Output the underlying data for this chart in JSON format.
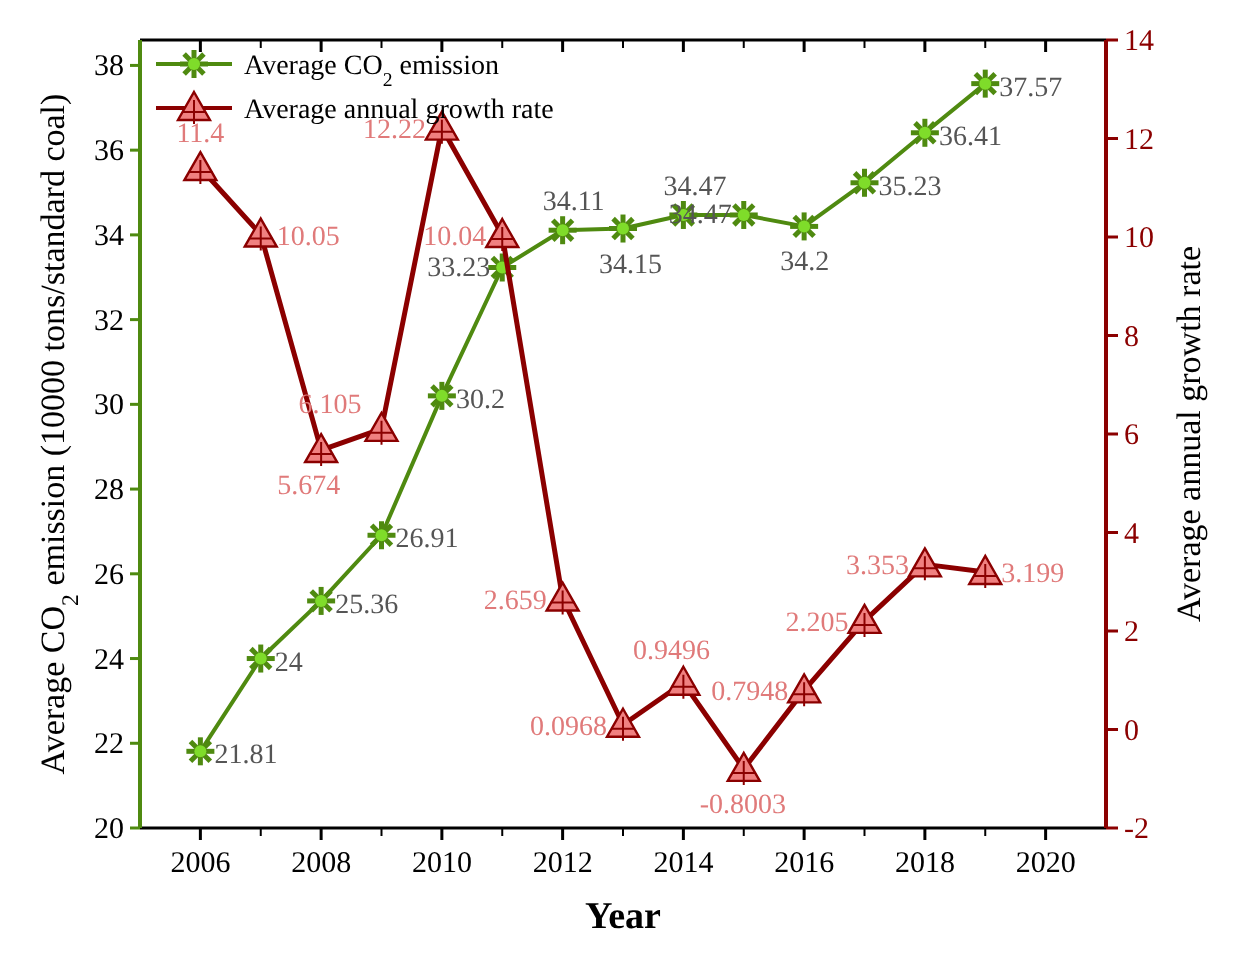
{
  "chart_data": {
    "type": "line",
    "xlabel": "Year",
    "ylabel": "Average CO$_{2}$ emission (10000 tons/standard coal)",
    "y2label": "Average annual growth rate",
    "x": [
      2006,
      2007,
      2008,
      2009,
      2010,
      2011,
      2012,
      2013,
      2014,
      2015,
      2016,
      2017,
      2018,
      2019
    ],
    "series": [
      {
        "name": "Average CO$_{2}$ emission",
        "color": "#4f8a10",
        "marker": "cross",
        "values": [
          21.81,
          24,
          25.36,
          26.91,
          30.2,
          33.23,
          34.11,
          34.15,
          34.47,
          34.47,
          34.2,
          35.23,
          36.41,
          37.57
        ]
      },
      {
        "name": "Average annual growth rate",
        "color": "#8b0000",
        "marker": "triangle",
        "axis": "y2",
        "values": [
          11.4,
          10.05,
          5.674,
          6.105,
          12.22,
          10.04,
          2.659,
          0.0968,
          0.9496,
          -0.8003,
          0.7948,
          2.205,
          3.353,
          3.199
        ]
      }
    ],
    "xlim": [
      2005,
      2021
    ],
    "xticks": [
      2006,
      2008,
      2010,
      2012,
      2014,
      2016,
      2018,
      2020
    ],
    "ylim": [
      20,
      38.6
    ],
    "yticks": [
      20,
      22,
      24,
      26,
      28,
      30,
      32,
      34,
      36,
      38
    ],
    "y2lim": [
      -2,
      14
    ],
    "y2ticks": [
      -2,
      0,
      2,
      4,
      6,
      8,
      10,
      12,
      14
    ],
    "data_labels": true,
    "legend": "top left",
    "grid": false
  }
}
